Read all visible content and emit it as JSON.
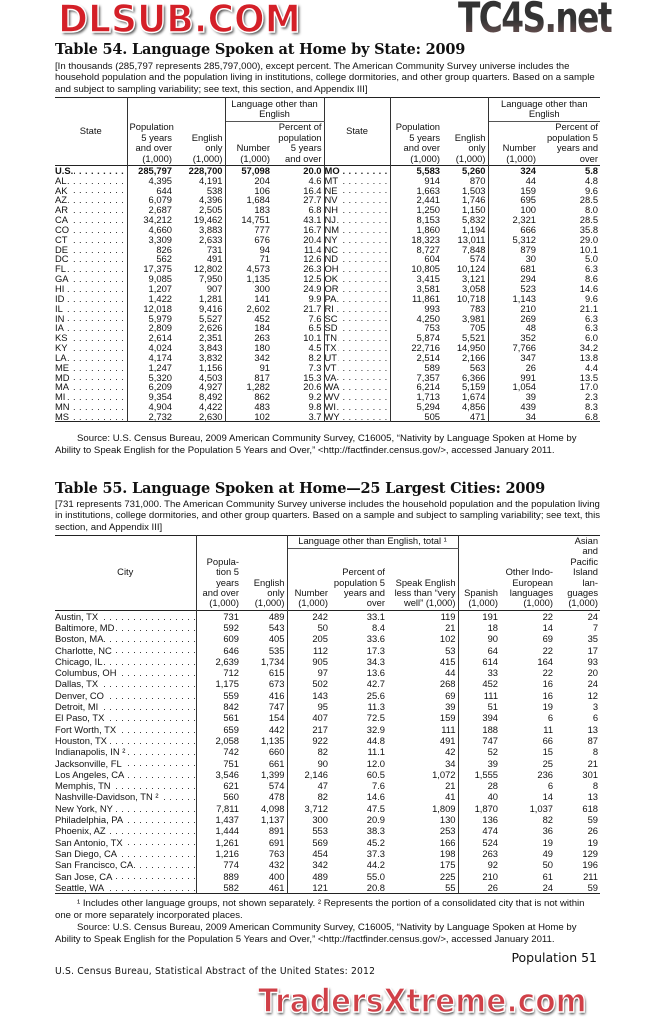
{
  "watermarks": {
    "top": "TC4S.net",
    "middle": "DLSUB.COM",
    "bottom": "TradersXtreme.com"
  },
  "table54": {
    "title": "Table 54. Language Spoken at Home by State: 2009",
    "note": "[In thousands (285,797 represents 285,797,000), except percent. The American Community Survey universe includes the household population and the population living in institutions, college dormitories, and other group quarters. Based on a sample and subject to sampling variability; see text, this section, and Appendix III]",
    "headers": {
      "state": "State",
      "population": "Population 5 years and over (1,000)",
      "english_only": "English only (1,000)",
      "group": "Language other than English",
      "number": "Number (1,000)",
      "percent": "Percent of population 5 years and over"
    },
    "left_rows": [
      [
        "U.S.",
        "285,797",
        "228,700",
        "57,098",
        "20.0"
      ],
      [
        "AL",
        "4,395",
        "4,191",
        "204",
        "4.6"
      ],
      [
        "AK",
        "644",
        "538",
        "106",
        "16.4"
      ],
      [
        "AZ",
        "6,079",
        "4,396",
        "1,684",
        "27.7"
      ],
      [
        "AR",
        "2,687",
        "2,505",
        "183",
        "6.8"
      ],
      [
        "CA",
        "34,212",
        "19,462",
        "14,751",
        "43.1"
      ],
      [
        "CO",
        "4,660",
        "3,883",
        "777",
        "16.7"
      ],
      [
        "CT",
        "3,309",
        "2,633",
        "676",
        "20.4"
      ],
      [
        "DE",
        "826",
        "731",
        "94",
        "11.4"
      ],
      [
        "DC",
        "562",
        "491",
        "71",
        "12.6"
      ],
      [
        "FL",
        "17,375",
        "12,802",
        "4,573",
        "26.3"
      ],
      [
        "GA",
        "9,085",
        "7,950",
        "1,135",
        "12.5"
      ],
      [
        "HI",
        "1,207",
        "907",
        "300",
        "24.9"
      ],
      [
        "ID",
        "1,422",
        "1,281",
        "141",
        "9.9"
      ],
      [
        "IL",
        "12,018",
        "9,416",
        "2,602",
        "21.7"
      ],
      [
        "IN",
        "5,979",
        "5,527",
        "452",
        "7.6"
      ],
      [
        "IA",
        "2,809",
        "2,626",
        "184",
        "6.5"
      ],
      [
        "KS",
        "2,614",
        "2,351",
        "263",
        "10.1"
      ],
      [
        "KY",
        "4,024",
        "3,843",
        "180",
        "4.5"
      ],
      [
        "LA",
        "4,174",
        "3,832",
        "342",
        "8.2"
      ],
      [
        "ME",
        "1,247",
        "1,156",
        "91",
        "7.3"
      ],
      [
        "MD",
        "5,320",
        "4,503",
        "817",
        "15.3"
      ],
      [
        "MA",
        "6,209",
        "4,927",
        "1,282",
        "20.6"
      ],
      [
        "MI",
        "9,354",
        "8,492",
        "862",
        "9.2"
      ],
      [
        "MN",
        "4,904",
        "4,422",
        "483",
        "9.8"
      ],
      [
        "MS",
        "2,732",
        "2,630",
        "102",
        "3.7"
      ]
    ],
    "right_rows": [
      [
        "MO",
        "5,583",
        "5,260",
        "324",
        "5.8"
      ],
      [
        "MT",
        "914",
        "870",
        "44",
        "4.8"
      ],
      [
        "NE",
        "1,663",
        "1,503",
        "159",
        "9.6"
      ],
      [
        "NV",
        "2,441",
        "1,746",
        "695",
        "28.5"
      ],
      [
        "NH",
        "1,250",
        "1,150",
        "100",
        "8.0"
      ],
      [
        "NJ",
        "8,153",
        "5,832",
        "2,321",
        "28.5"
      ],
      [
        "NM",
        "1,860",
        "1,194",
        "666",
        "35.8"
      ],
      [
        "NY",
        "18,323",
        "13,011",
        "5,312",
        "29.0"
      ],
      [
        "NC",
        "8,727",
        "7,848",
        "879",
        "10.1"
      ],
      [
        "ND",
        "604",
        "574",
        "30",
        "5.0"
      ],
      [
        "OH",
        "10,805",
        "10,124",
        "681",
        "6.3"
      ],
      [
        "OK",
        "3,415",
        "3,121",
        "294",
        "8.6"
      ],
      [
        "OR",
        "3,581",
        "3,058",
        "523",
        "14.6"
      ],
      [
        "PA",
        "11,861",
        "10,718",
        "1,143",
        "9.6"
      ],
      [
        "RI",
        "993",
        "783",
        "210",
        "21.1"
      ],
      [
        "SC",
        "4,250",
        "3,981",
        "269",
        "6.3"
      ],
      [
        "SD",
        "753",
        "705",
        "48",
        "6.3"
      ],
      [
        "TN",
        "5,874",
        "5,521",
        "352",
        "6.0"
      ],
      [
        "TX",
        "22,716",
        "14,950",
        "7,766",
        "34.2"
      ],
      [
        "UT",
        "2,514",
        "2,166",
        "347",
        "13.8"
      ],
      [
        "VT",
        "589",
        "563",
        "26",
        "4.4"
      ],
      [
        "VA",
        "7,357",
        "6,366",
        "991",
        "13.5"
      ],
      [
        "WA",
        "6,214",
        "5,159",
        "1,054",
        "17.0"
      ],
      [
        "WV",
        "1,713",
        "1,674",
        "39",
        "2.3"
      ],
      [
        "WI",
        "5,294",
        "4,856",
        "439",
        "8.3"
      ],
      [
        "WY",
        "505",
        "471",
        "34",
        "6.8"
      ]
    ],
    "source": "Source: U.S. Census Bureau, 2009 American Community Survey, C16005, “Nativity by Language Spoken at Home by Ability to Speak English for the Population 5 Years and Over,” <http://factfinder.census.gov/>, accessed January 2011."
  },
  "table55": {
    "title": "Table 55. Language Spoken at Home—25 Largest Cities: 2009",
    "note": "[731 represents 731,000. The American Community Survey universe includes the household population and the population living in institutions, college dormitories, and other group quarters. Based on a sample and subject to sampling variability; see text, this section, and Appendix III]",
    "headers": {
      "city": "City",
      "population": "Popula- tion 5 years and over (1,000)",
      "english_only": "English only (1,000)",
      "group": "Language other than English, total ¹",
      "number": "Number (1,000)",
      "percent": "Percent of population 5 years and over",
      "speak": "Speak English less than “very well” (1,000)",
      "spanish": "Spanish (1,000)",
      "other_indo": "Other Indo- European languages (1,000)",
      "asian": "Asian and Pacific Island lan- guages (1,000)"
    },
    "rows": [
      [
        "Austin, TX",
        "731",
        "489",
        "242",
        "33.1",
        "119",
        "191",
        "22",
        "24"
      ],
      [
        "Baltimore, MD",
        "592",
        "543",
        "50",
        "8.4",
        "21",
        "18",
        "14",
        "7"
      ],
      [
        "Boston, MA",
        "609",
        "405",
        "205",
        "33.6",
        "102",
        "90",
        "69",
        "35"
      ],
      [
        "Charlotte, NC",
        "646",
        "535",
        "112",
        "17.3",
        "53",
        "64",
        "22",
        "17"
      ],
      [
        "Chicago, IL",
        "2,639",
        "1,734",
        "905",
        "34.3",
        "415",
        "614",
        "164",
        "93"
      ],
      [
        "Columbus, OH",
        "712",
        "615",
        "97",
        "13.6",
        "44",
        "33",
        "22",
        "20"
      ],
      [
        "Dallas, TX",
        "1,175",
        "673",
        "502",
        "42.7",
        "268",
        "452",
        "16",
        "24"
      ],
      [
        "Denver, CO",
        "559",
        "416",
        "143",
        "25.6",
        "69",
        "111",
        "16",
        "12"
      ],
      [
        "Detroit, MI",
        "842",
        "747",
        "95",
        "11.3",
        "39",
        "51",
        "19",
        "3"
      ],
      [
        "El Paso, TX",
        "561",
        "154",
        "407",
        "72.5",
        "159",
        "394",
        "6",
        "6"
      ],
      [
        "Fort Worth, TX",
        "659",
        "442",
        "217",
        "32.9",
        "111",
        "188",
        "11",
        "13"
      ],
      [
        "Houston, TX",
        "2,058",
        "1,135",
        "922",
        "44.8",
        "491",
        "747",
        "66",
        "87"
      ],
      [
        "Indianapolis, IN ²",
        "742",
        "660",
        "82",
        "11.1",
        "42",
        "52",
        "15",
        "8"
      ],
      [
        "Jacksonville, FL",
        "751",
        "661",
        "90",
        "12.0",
        "34",
        "39",
        "25",
        "21"
      ],
      [
        "Los Angeles, CA",
        "3,546",
        "1,399",
        "2,146",
        "60.5",
        "1,072",
        "1,555",
        "236",
        "301"
      ],
      [
        "Memphis, TN",
        "621",
        "574",
        "47",
        "7.6",
        "21",
        "28",
        "6",
        "8"
      ],
      [
        "Nashville-Davidson, TN ²",
        "560",
        "478",
        "82",
        "14.6",
        "41",
        "40",
        "14",
        "13"
      ],
      [
        "New York, NY",
        "7,811",
        "4,098",
        "3,712",
        "47.5",
        "1,809",
        "1,870",
        "1,037",
        "618"
      ],
      [
        "Philadelphia, PA",
        "1,437",
        "1,137",
        "300",
        "20.9",
        "130",
        "136",
        "82",
        "59"
      ],
      [
        "Phoenix, AZ",
        "1,444",
        "891",
        "553",
        "38.3",
        "253",
        "474",
        "36",
        "26"
      ],
      [
        "San Antonio, TX",
        "1,261",
        "691",
        "569",
        "45.2",
        "166",
        "524",
        "19",
        "19"
      ],
      [
        "San Diego, CA",
        "1,216",
        "763",
        "454",
        "37.3",
        "198",
        "263",
        "49",
        "129"
      ],
      [
        "San Francisco, CA",
        "774",
        "432",
        "342",
        "44.2",
        "175",
        "92",
        "50",
        "196"
      ],
      [
        "San Jose, CA",
        "889",
        "400",
        "489",
        "55.0",
        "225",
        "210",
        "61",
        "211"
      ],
      [
        "Seattle, WA",
        "582",
        "461",
        "121",
        "20.8",
        "55",
        "26",
        "24",
        "59"
      ]
    ],
    "footnote": "¹ Includes other language groups, not shown separately. ² Represents the portion of a consolidated city that is not within one or more separately incorporated places.",
    "source": "Source: U.S. Census Bureau, 2009 American Community Survey, C16005, “Nativity by Language Spoken at Home by Ability to Speak English for the Population 5 Years and Over,” <http://factfinder.census.gov/>, accessed January 2011."
  },
  "footer": {
    "left": "U.S. Census Bureau, Statistical Abstract of the United States: 2012",
    "right": "Population 51"
  }
}
